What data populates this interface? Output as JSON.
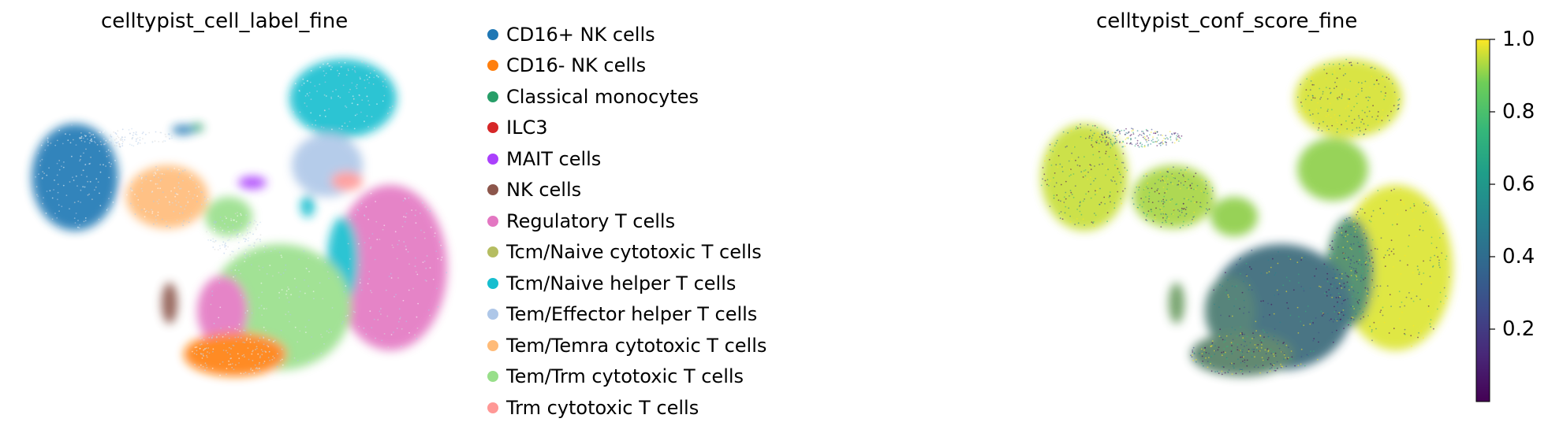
{
  "chart_data": [
    {
      "type": "scatter",
      "title": "celltypist_cell_label_fine",
      "legend_position": "right",
      "grid": false,
      "series": [
        {
          "name": "CD16+ NK cells",
          "color": "#1f77b4"
        },
        {
          "name": "CD16- NK cells",
          "color": "#ff7f0e"
        },
        {
          "name": "Classical monocytes",
          "color": "#279e68"
        },
        {
          "name": "ILC3",
          "color": "#d62728"
        },
        {
          "name": "MAIT cells",
          "color": "#aa40fc"
        },
        {
          "name": "NK cells",
          "color": "#8c564b"
        },
        {
          "name": "Regulatory T cells",
          "color": "#e377c2"
        },
        {
          "name": "Tcm/Naive cytotoxic T cells",
          "color": "#b5bd61"
        },
        {
          "name": "Tcm/Naive helper T cells",
          "color": "#17becf"
        },
        {
          "name": "Tem/Effector helper T cells",
          "color": "#aec7e8"
        },
        {
          "name": "Tem/Temra cytotoxic T cells",
          "color": "#ffbb78"
        },
        {
          "name": "Tem/Trm cytotoxic T cells",
          "color": "#98df8a"
        },
        {
          "name": "Trm cytotoxic T cells",
          "color": "#ff9896"
        }
      ]
    },
    {
      "type": "scatter",
      "title": "celltypist_conf_score_fine",
      "colormap": "viridis",
      "grid": false,
      "colorbar": {
        "min": 0.0,
        "max": 1.0,
        "ticks": [
          {
            "value": 0.2,
            "label": "0.2"
          },
          {
            "value": 0.4,
            "label": "0.4"
          },
          {
            "value": 0.6,
            "label": "0.6"
          },
          {
            "value": 0.8,
            "label": "0.8"
          },
          {
            "value": 1.0,
            "label": "1.0"
          }
        ]
      }
    }
  ]
}
